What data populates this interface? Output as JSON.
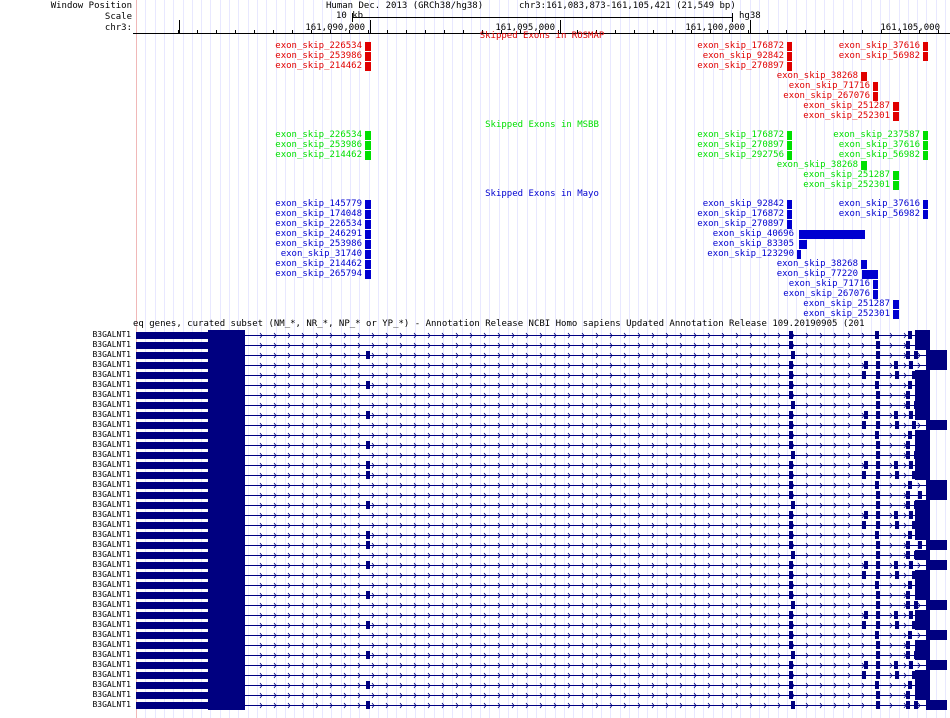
{
  "header": {
    "labels": {
      "position": "Window Position",
      "scale": "Scale",
      "chrom": "chr3:"
    },
    "assembly": "Human Dec. 2013 (GRCh38/hg38)",
    "location": "chr3:161,083,873-161,105,421 (21,549 bp)",
    "scale_text": "10 kb",
    "build": "hg38",
    "ticks": [
      "161,090,000",
      "161,095,000",
      "161,100,000",
      "161,105,000"
    ]
  },
  "tracks": [
    {
      "title": "Skipped Exons in ROSMAP",
      "color": "#e00000",
      "exons": [
        {
          "label": "exon_skip_226534"
        },
        {
          "label": "exon_skip_253986"
        },
        {
          "label": "exon_skip_214462"
        },
        {
          "label": "exon_skip_176872"
        },
        {
          "label": "exon_skip_92842"
        },
        {
          "label": "exon_skip_270897"
        },
        {
          "label": "exon_skip_37616"
        },
        {
          "label": "exon_skip_56982"
        },
        {
          "label": "exon_skip_38268"
        },
        {
          "label": "exon_skip_71716"
        },
        {
          "label": "exon_skip_267076"
        },
        {
          "label": "exon_skip_251287"
        },
        {
          "label": "exon_skip_252301"
        }
      ]
    },
    {
      "title": "Skipped Exons in MSBB",
      "color": "#00e000",
      "exons": [
        {
          "label": "exon_skip_226534"
        },
        {
          "label": "exon_skip_253986"
        },
        {
          "label": "exon_skip_214462"
        },
        {
          "label": "exon_skip_176872"
        },
        {
          "label": "exon_skip_270897"
        },
        {
          "label": "exon_skip_292756"
        },
        {
          "label": "exon_skip_237587"
        },
        {
          "label": "exon_skip_37616"
        },
        {
          "label": "exon_skip_56982"
        },
        {
          "label": "exon_skip_38268"
        },
        {
          "label": "exon_skip_251287"
        },
        {
          "label": "exon_skip_252301"
        }
      ]
    },
    {
      "title": "Skipped Exons in Mayo",
      "color": "#0000d0",
      "exons": [
        {
          "label": "exon_skip_145779"
        },
        {
          "label": "exon_skip_174048"
        },
        {
          "label": "exon_skip_226534"
        },
        {
          "label": "exon_skip_246291"
        },
        {
          "label": "exon_skip_253986"
        },
        {
          "label": "exon_skip_31740"
        },
        {
          "label": "exon_skip_214462"
        },
        {
          "label": "exon_skip_265794"
        },
        {
          "label": "exon_skip_92842"
        },
        {
          "label": "exon_skip_176872"
        },
        {
          "label": "exon_skip_270897"
        },
        {
          "label": "exon_skip_40696"
        },
        {
          "label": "exon_skip_83305"
        },
        {
          "label": "exon_skip_123290"
        },
        {
          "label": "exon_skip_37616"
        },
        {
          "label": "exon_skip_56982"
        },
        {
          "label": "exon_skip_38268"
        },
        {
          "label": "exon_skip_77220"
        },
        {
          "label": "exon_skip_71716"
        },
        {
          "label": "exon_skip_267076"
        },
        {
          "label": "exon_skip_251287"
        },
        {
          "label": "exon_skip_252301"
        }
      ]
    }
  ],
  "refseq": {
    "title": "eq genes, curated subset (NM_*, NR_*, NP_* or YP_*) - Annotation Release NCBI Homo sapiens Updated Annotation Release 109.20190905 (201",
    "color": "#000080",
    "gene_name": "B3GALNT1",
    "transcript_count": 38
  }
}
